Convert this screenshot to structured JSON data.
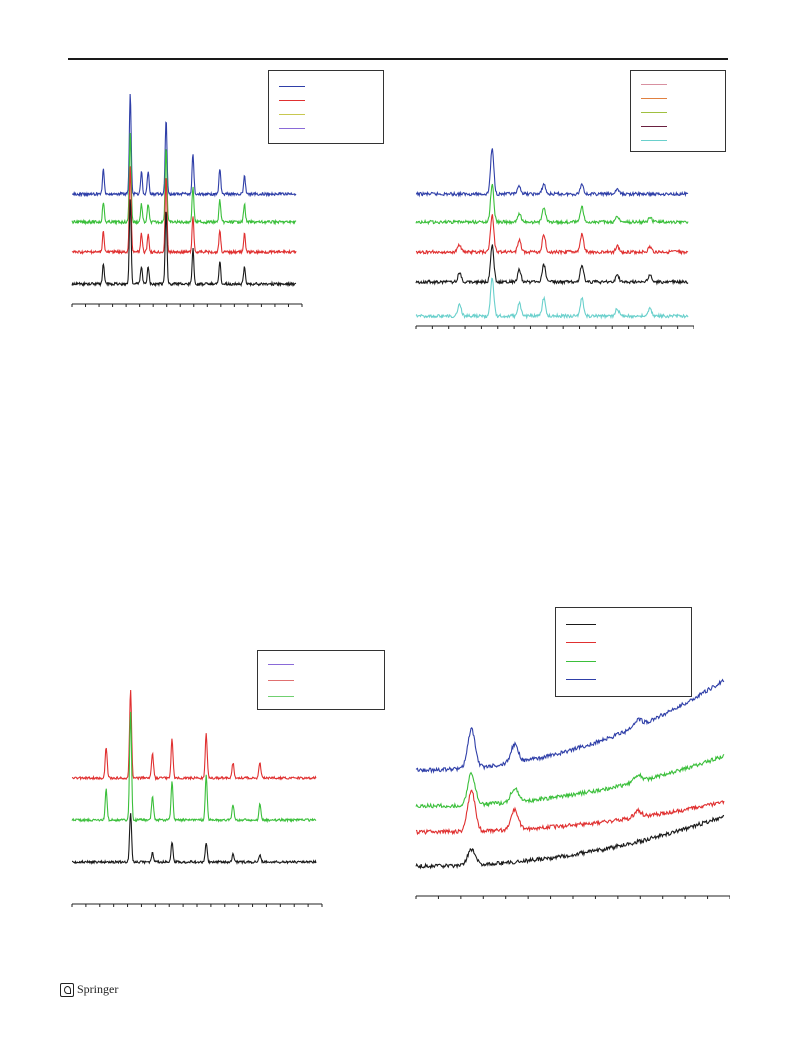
{
  "page": {
    "footer_publisher": "Springer",
    "header_rule_color": "#1a1a1a"
  },
  "chart_data": [
    {
      "type": "line",
      "title": "",
      "xlabel": "",
      "ylabel": "",
      "legend": "top-right",
      "grid": false,
      "series": [
        {
          "color": "#2f3fa8",
          "peaks": [
            [
              0.14,
              0.25
            ],
            [
              0.26,
              1.0
            ],
            [
              0.31,
              0.22
            ],
            [
              0.34,
              0.22
            ],
            [
              0.42,
              0.75
            ],
            [
              0.54,
              0.4
            ],
            [
              0.66,
              0.25
            ],
            [
              0.77,
              0.18
            ]
          ]
        },
        {
          "color": "#3bbf3b",
          "peaks": [
            [
              0.14,
              0.2
            ],
            [
              0.26,
              0.9
            ],
            [
              0.31,
              0.18
            ],
            [
              0.34,
              0.18
            ],
            [
              0.42,
              0.75
            ],
            [
              0.54,
              0.35
            ],
            [
              0.66,
              0.22
            ],
            [
              0.77,
              0.18
            ]
          ]
        },
        {
          "color": "#e03030",
          "peaks": [
            [
              0.14,
              0.2
            ],
            [
              0.26,
              0.85
            ],
            [
              0.31,
              0.18
            ],
            [
              0.34,
              0.18
            ],
            [
              0.42,
              0.75
            ],
            [
              0.54,
              0.35
            ],
            [
              0.66,
              0.22
            ],
            [
              0.77,
              0.18
            ]
          ]
        },
        {
          "color": "#1a1a1a",
          "peaks": [
            [
              0.14,
              0.2
            ],
            [
              0.26,
              0.85
            ],
            [
              0.31,
              0.18
            ],
            [
              0.34,
              0.18
            ],
            [
              0.42,
              0.75
            ],
            [
              0.54,
              0.35
            ],
            [
              0.66,
              0.22
            ],
            [
              0.77,
              0.18
            ]
          ]
        }
      ]
    },
    {
      "type": "line",
      "title": "",
      "xlabel": "",
      "ylabel": "",
      "legend": "top-right",
      "grid": false,
      "series": [
        {
          "color": "#2f3fa8",
          "peaks": [
            [
              0.28,
              0.9
            ],
            [
              0.38,
              0.15
            ],
            [
              0.47,
              0.2
            ],
            [
              0.61,
              0.2
            ],
            [
              0.74,
              0.1
            ]
          ]
        },
        {
          "color": "#3bbf3b",
          "peaks": [
            [
              0.28,
              0.75
            ],
            [
              0.38,
              0.18
            ],
            [
              0.47,
              0.3
            ],
            [
              0.61,
              0.3
            ],
            [
              0.74,
              0.12
            ],
            [
              0.86,
              0.1
            ]
          ]
        },
        {
          "color": "#e03030",
          "peaks": [
            [
              0.16,
              0.15
            ],
            [
              0.28,
              0.75
            ],
            [
              0.38,
              0.25
            ],
            [
              0.47,
              0.35
            ],
            [
              0.61,
              0.35
            ],
            [
              0.74,
              0.12
            ],
            [
              0.86,
              0.1
            ]
          ]
        },
        {
          "color": "#1a1a1a",
          "peaks": [
            [
              0.16,
              0.18
            ],
            [
              0.28,
              0.75
            ],
            [
              0.38,
              0.25
            ],
            [
              0.47,
              0.35
            ],
            [
              0.61,
              0.35
            ],
            [
              0.74,
              0.15
            ],
            [
              0.86,
              0.15
            ]
          ]
        },
        {
          "color": "#6ad0cc",
          "peaks": [
            [
              0.16,
              0.25
            ],
            [
              0.28,
              0.75
            ],
            [
              0.38,
              0.25
            ],
            [
              0.47,
              0.35
            ],
            [
              0.61,
              0.35
            ],
            [
              0.74,
              0.15
            ],
            [
              0.86,
              0.15
            ]
          ]
        }
      ]
    },
    {
      "type": "line",
      "title": "",
      "xlabel": "",
      "ylabel": "",
      "legend": "top-right",
      "grid": false,
      "series": [
        {
          "color": "#e03030",
          "peaks": [
            [
              0.14,
              0.28
            ],
            [
              0.24,
              0.8
            ],
            [
              0.33,
              0.22
            ],
            [
              0.41,
              0.35
            ],
            [
              0.55,
              0.4
            ],
            [
              0.66,
              0.14
            ],
            [
              0.77,
              0.14
            ]
          ]
        },
        {
          "color": "#3bbf3b",
          "peaks": [
            [
              0.14,
              0.28
            ],
            [
              0.24,
              1.0
            ],
            [
              0.33,
              0.22
            ],
            [
              0.41,
              0.35
            ],
            [
              0.55,
              0.4
            ],
            [
              0.66,
              0.14
            ],
            [
              0.77,
              0.14
            ]
          ]
        },
        {
          "color": "#1a1a1a",
          "peaks": [
            [
              0.24,
              0.45
            ],
            [
              0.33,
              0.08
            ],
            [
              0.41,
              0.18
            ],
            [
              0.55,
              0.18
            ],
            [
              0.66,
              0.07
            ],
            [
              0.77,
              0.06
            ]
          ]
        }
      ]
    },
    {
      "type": "line",
      "title": "",
      "xlabel": "",
      "ylabel": "",
      "legend": "top-left",
      "grid": false,
      "series": [
        {
          "color": "#2f3fa8",
          "peaks": [
            [
              0.18,
              0.85
            ],
            [
              0.32,
              0.4
            ],
            [
              0.72,
              0.15
            ]
          ]
        },
        {
          "color": "#3bbf3b",
          "peaks": [
            [
              0.18,
              0.7
            ],
            [
              0.32,
              0.3
            ],
            [
              0.72,
              0.15
            ]
          ]
        },
        {
          "color": "#e03030",
          "peaks": [
            [
              0.18,
              0.9
            ],
            [
              0.32,
              0.45
            ],
            [
              0.72,
              0.15
            ]
          ]
        },
        {
          "color": "#1a1a1a",
          "peaks": [
            [
              0.18,
              0.35
            ]
          ]
        }
      ]
    }
  ]
}
